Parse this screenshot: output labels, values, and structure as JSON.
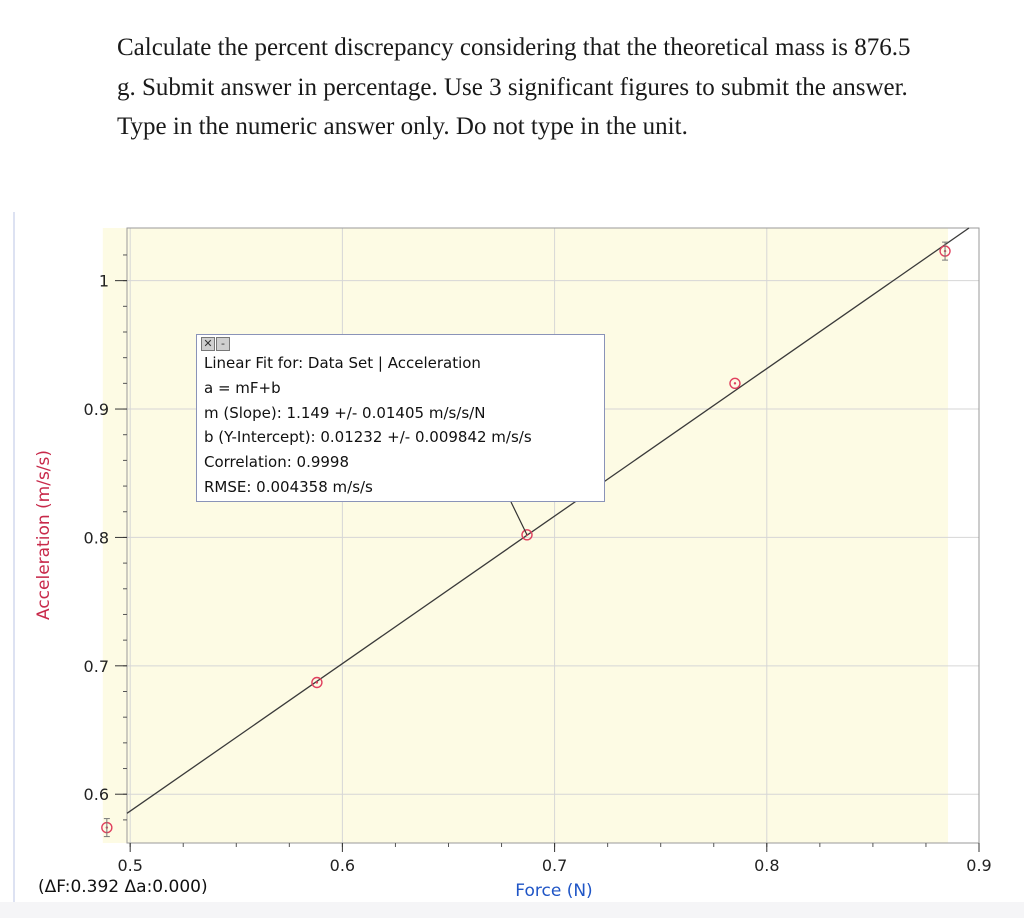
{
  "question": {
    "lines": [
      "Calculate the percent discrepancy considering that the theoretical mass is 876.5",
      "g. Submit answer in percentage. Use 3 significant figures to submit the answer.",
      "Type in the numeric answer only. Do not type in the unit."
    ]
  },
  "fit_box": {
    "title": "Linear Fit for: Data Set | Acceleration",
    "equation": "a = mF+b",
    "slope": "m (Slope): 1.149 +/- 0.01405 m/s/s/N",
    "intercept": "b (Y-Intercept): 0.01232 +/- 0.009842 m/s/s",
    "correlation": "Correlation: 0.9998",
    "rmse": "RMSE: 0.004358 m/s/s",
    "controls": [
      "close-icon",
      "minimize-icon"
    ]
  },
  "delta_readout": "(ΔF:0.392 Δa:0.000)",
  "chart_data": {
    "type": "scatter",
    "xlabel": "Force (N)",
    "ylabel": "Acceleration (m/s/s)",
    "xlim": [
      0.4985,
      0.9
    ],
    "ylim": [
      0.562,
      1.041
    ],
    "x_ticks": [
      "0.5",
      "0.6",
      "0.7",
      "0.8",
      "0.9"
    ],
    "x_tick_values": [
      0.5,
      0.6,
      0.7,
      0.8,
      0.9
    ],
    "y_ticks": [
      "0.6",
      "0.7",
      "0.8",
      "0.9",
      "1"
    ],
    "y_tick_values": [
      0.6,
      0.7,
      0.8,
      0.9,
      1.0
    ],
    "grid": true,
    "series": [
      {
        "points": [
          {
            "x": 0.489,
            "y": 0.574
          },
          {
            "x": 0.588,
            "y": 0.687
          },
          {
            "x": 0.687,
            "y": 0.802
          },
          {
            "x": 0.785,
            "y": 0.92
          },
          {
            "x": 0.884,
            "y": 1.023
          }
        ]
      }
    ],
    "fit_line": {
      "slope": 1.149,
      "intercept": 0.01232,
      "x_range": [
        0.48,
        0.9
      ]
    },
    "fit_region": [
      0.489,
      0.884
    ],
    "colors": {
      "points": "#e0405e",
      "fit_line": "#3a3a3a",
      "fit_region": "#fdfbe4",
      "grid": "#d6d6d6",
      "ylabel": "#c8294a",
      "xlabel": "#1f55c6"
    }
  }
}
